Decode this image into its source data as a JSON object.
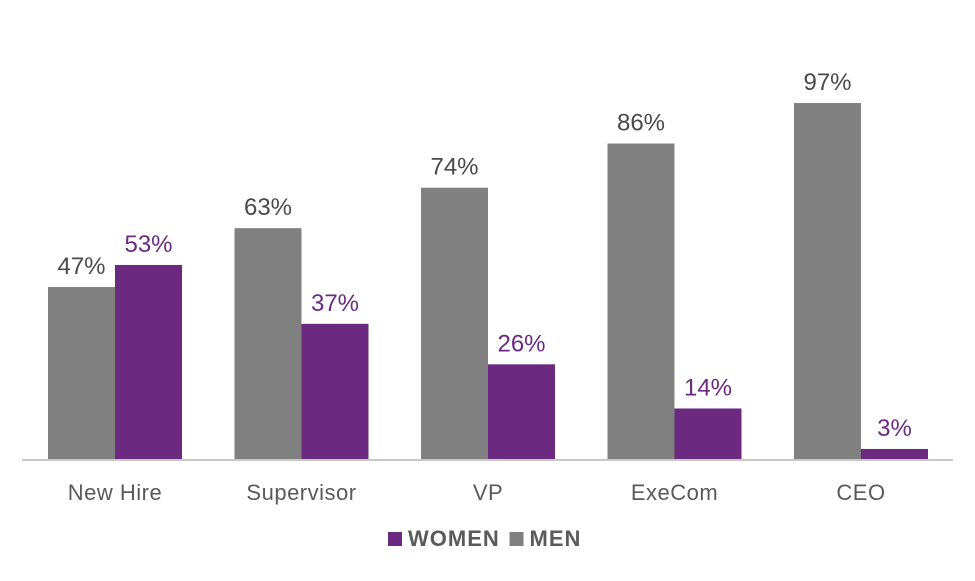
{
  "chart_data": {
    "type": "bar",
    "categories": [
      "New Hire",
      "Supervisor",
      "VP",
      "ExeCom",
      "CEO"
    ],
    "series": [
      {
        "name": "MEN",
        "color": "#808080",
        "values": [
          47,
          63,
          74,
          86,
          97
        ],
        "labels": [
          "47%",
          "63%",
          "74%",
          "86%",
          "97%"
        ]
      },
      {
        "name": "WOMEN",
        "color": "#6B2A80",
        "values": [
          53,
          37,
          26,
          14,
          3
        ],
        "labels": [
          "53%",
          "37%",
          "26%",
          "14%",
          "3%"
        ]
      }
    ],
    "legend": {
      "position": "bottom",
      "order": [
        "WOMEN",
        "MEN"
      ]
    },
    "ylim": [
      0,
      100
    ],
    "grid": false
  }
}
